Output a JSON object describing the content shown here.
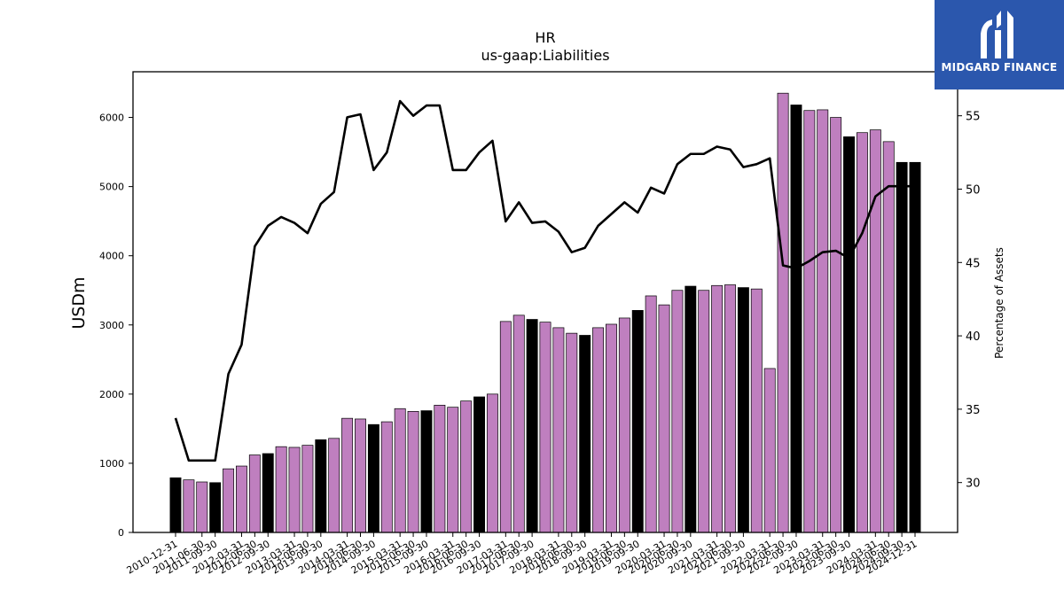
{
  "logo": {
    "text": "MIDGARD FINANCE"
  },
  "chart_data": {
    "type": "bar",
    "title": "HR",
    "subtitle": "us-gaap:Liabilities",
    "ylabel": "USDm",
    "y2label": "Percentage of Assets",
    "ylim": [
      0,
      6660
    ],
    "y2lim": [
      26.6,
      58.0
    ],
    "yticks": [
      0,
      1000,
      2000,
      3000,
      4000,
      5000,
      6000
    ],
    "y2ticks": [
      30,
      35,
      40,
      45,
      50,
      55
    ],
    "colors": {
      "annual": "#000000",
      "quarterly": "#bf7fbf",
      "line": "#000000"
    },
    "categories": [
      "2010-12-31",
      "2011-03-31",
      "2011-06-30",
      "2011-09-30",
      "2011-12-31",
      "2012-03-31",
      "2012-06-30",
      "2012-09-30",
      "2012-12-31",
      "2013-03-31",
      "2013-06-30",
      "2013-09-30",
      "2013-12-31",
      "2014-03-31",
      "2014-06-30",
      "2014-09-30",
      "2014-12-31",
      "2015-03-31",
      "2015-06-30",
      "2015-09-30",
      "2015-12-31",
      "2016-03-31",
      "2016-06-30",
      "2016-09-30",
      "2016-12-31",
      "2017-03-31",
      "2017-06-30",
      "2017-09-30",
      "2017-12-31",
      "2018-03-31",
      "2018-06-30",
      "2018-09-30",
      "2018-12-31",
      "2019-03-31",
      "2019-06-30",
      "2019-09-30",
      "2019-12-31",
      "2020-03-31",
      "2020-06-30",
      "2020-09-30",
      "2020-12-31",
      "2021-03-31",
      "2021-06-30",
      "2021-09-30",
      "2021-12-31",
      "2022-03-31",
      "2022-06-30",
      "2022-09-30",
      "2022-12-31",
      "2023-03-31",
      "2023-06-30",
      "2023-09-30",
      "2023-12-31",
      "2024-03-31",
      "2024-06-30",
      "2024-09-30",
      "2024-12-31"
    ],
    "tick_labels": [
      "2010-12-31",
      "2011-06-30",
      "2011-09-30",
      "2012-03-31",
      "2012-06-30",
      "2012-09-30",
      "2013-03-31",
      "2013-06-30",
      "2013-09-30",
      "2014-03-31",
      "2014-06-30",
      "2014-09-30",
      "2015-03-31",
      "2015-06-30",
      "2015-09-30",
      "2016-03-31",
      "2016-06-30",
      "2016-09-30",
      "2017-03-31",
      "2017-06-30",
      "2017-09-30",
      "2018-03-31",
      "2018-06-30",
      "2018-09-30",
      "2019-03-31",
      "2019-06-30",
      "2019-09-30",
      "2020-03-31",
      "2020-06-30",
      "2020-09-30",
      "2021-03-31",
      "2021-06-30",
      "2021-09-30",
      "2022-03-31",
      "2022-06-30",
      "2022-09-30",
      "2023-03-31",
      "2023-06-30",
      "2023-09-30",
      "2024-03-31",
      "2024-06-30",
      "2024-09-30",
      "2024-12-31"
    ],
    "annual": [
      true,
      false,
      false,
      true,
      false,
      false,
      false,
      true,
      false,
      false,
      false,
      true,
      false,
      false,
      false,
      true,
      false,
      false,
      false,
      true,
      false,
      false,
      false,
      true,
      false,
      false,
      false,
      true,
      false,
      false,
      false,
      true,
      false,
      false,
      false,
      true,
      false,
      false,
      false,
      true,
      false,
      false,
      false,
      true,
      false,
      false,
      false,
      true,
      false,
      false,
      false,
      true,
      false,
      false,
      false,
      true,
      true
    ],
    "series": [
      {
        "name": "Liabilities",
        "values": [
          790,
          760,
          730,
          720,
          920,
          960,
          1120,
          1140,
          1240,
          1230,
          1260,
          1340,
          1360,
          1650,
          1640,
          1560,
          1600,
          1790,
          1750,
          1760,
          1840,
          1810,
          1900,
          1960,
          2000,
          3050,
          3140,
          3080,
          3040,
          2960,
          2880,
          2850,
          2960,
          3010,
          3100,
          3210,
          3420,
          3290,
          3500,
          3560,
          3500,
          3570,
          3580,
          3540,
          3520,
          2370,
          6350,
          6180,
          6100,
          6110,
          6000,
          5720,
          5780,
          5820,
          5650,
          5350,
          5350
        ]
      },
      {
        "name": "Percentage of Assets",
        "axis": "right",
        "values": [
          34.4,
          31.5,
          31.5,
          31.5,
          37.4,
          39.4,
          46.1,
          47.5,
          48.1,
          47.7,
          47.0,
          49.0,
          49.8,
          54.9,
          55.1,
          51.3,
          52.5,
          56.0,
          55.0,
          55.7,
          55.7,
          51.3,
          51.3,
          52.5,
          53.3,
          47.8,
          49.1,
          47.7,
          47.8,
          47.1,
          45.7,
          46.0,
          47.5,
          48.3,
          49.1,
          48.4,
          50.1,
          49.7,
          51.7,
          52.4,
          52.4,
          52.9,
          52.7,
          51.5,
          51.7,
          52.1,
          44.8,
          44.6,
          45.1,
          45.7,
          45.8,
          45.3,
          47.0,
          49.5,
          50.2,
          50.2,
          50.2
        ]
      }
    ]
  }
}
